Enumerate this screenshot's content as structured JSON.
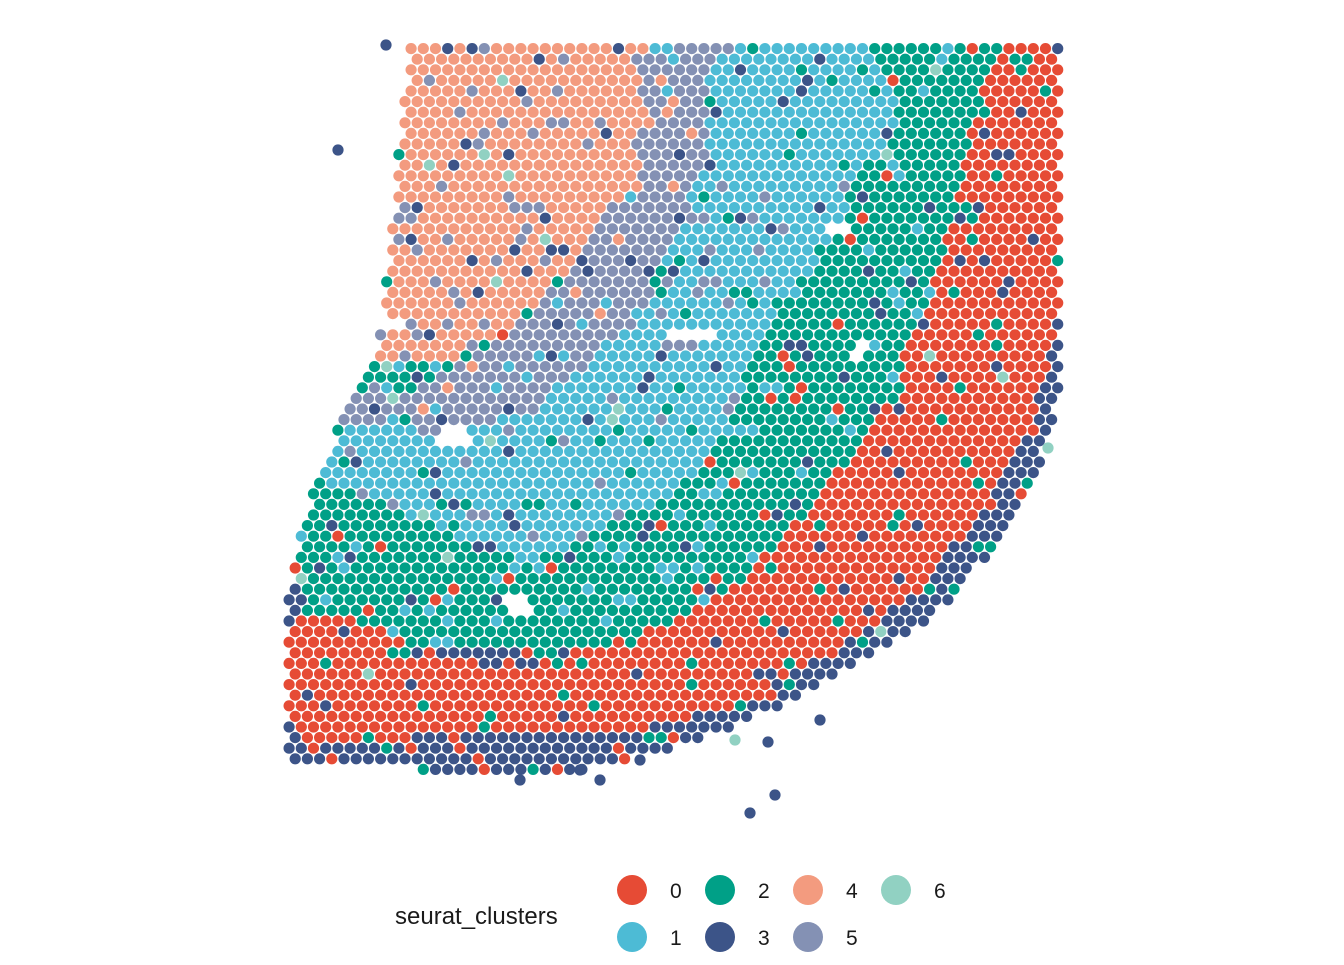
{
  "chart_data": {
    "type": "scatter",
    "subtype": "spatial-transcriptomics-spot-plot",
    "title": "",
    "xlabel": "",
    "ylabel": "",
    "axes_visible": false,
    "grid": false,
    "legend": {
      "title": "seurat_clusters",
      "placement": "bottom",
      "entries": [
        {
          "label": "0",
          "color": "#E64B35"
        },
        {
          "label": "1",
          "color": "#4DBBD5"
        },
        {
          "label": "2",
          "color": "#00A087"
        },
        {
          "label": "3",
          "color": "#3C5488"
        },
        {
          "label": "4",
          "color": "#F39B7F"
        },
        {
          "label": "5",
          "color": "#8491B4"
        },
        {
          "label": "6",
          "color": "#91D1C2"
        }
      ]
    },
    "series": [
      {
        "name": "0",
        "color": "#E64B35",
        "regions": [
          [
            [
              1005,
              43
            ],
            [
              1058,
              38
            ],
            [
              1062,
              300
            ],
            [
              1045,
              380
            ],
            [
              1010,
              470
            ],
            [
              960,
              540
            ],
            [
              905,
              600
            ],
            [
              840,
              650
            ],
            [
              780,
              680
            ],
            [
              720,
              710
            ],
            [
              660,
              725
            ],
            [
              600,
              735
            ],
            [
              530,
              730
            ],
            [
              450,
              735
            ],
            [
              380,
              740
            ],
            [
              300,
              745
            ],
            [
              285,
              715
            ],
            [
              285,
              640
            ],
            [
              300,
              610
            ],
            [
              360,
              620
            ],
            [
              420,
              650
            ],
            [
              500,
              670
            ],
            [
              580,
              650
            ],
            [
              660,
              625
            ],
            [
              730,
              590
            ],
            [
              790,
              530
            ],
            [
              830,
              480
            ],
            [
              870,
              430
            ],
            [
              910,
              380
            ],
            [
              940,
              320
            ],
            [
              950,
              250
            ],
            [
              960,
              200
            ],
            [
              975,
              150
            ],
            [
              990,
              100
            ]
          ]
        ]
      },
      {
        "name": "1",
        "color": "#4DBBD5",
        "regions": [
          [
            [
              720,
              45
            ],
            [
              860,
              45
            ],
            [
              880,
              70
            ],
            [
              900,
              110
            ],
            [
              880,
              150
            ],
            [
              850,
              180
            ],
            [
              840,
              230
            ],
            [
              820,
              260
            ],
            [
              790,
              300
            ],
            [
              760,
              340
            ],
            [
              740,
              390
            ],
            [
              730,
              430
            ],
            [
              700,
              470
            ],
            [
              660,
              500
            ],
            [
              620,
              520
            ],
            [
              580,
              540
            ],
            [
              540,
              560
            ],
            [
              500,
              555
            ],
            [
              460,
              540
            ],
            [
              420,
              520
            ],
            [
              380,
              500
            ],
            [
              340,
              490
            ],
            [
              315,
              475
            ],
            [
              320,
              450
            ],
            [
              345,
              425
            ],
            [
              380,
              410
            ],
            [
              420,
              430
            ],
            [
              460,
              440
            ],
            [
              500,
              420
            ],
            [
              540,
              400
            ],
            [
              580,
              370
            ],
            [
              620,
              330
            ],
            [
              650,
              300
            ],
            [
              660,
              260
            ],
            [
              680,
              220
            ],
            [
              700,
              180
            ],
            [
              710,
              130
            ],
            [
              705,
              90
            ]
          ]
        ]
      },
      {
        "name": "2",
        "color": "#00A087",
        "regions": [
          [
            [
              860,
              45
            ],
            [
              1000,
              45
            ],
            [
              985,
              80
            ],
            [
              970,
              130
            ],
            [
              960,
              190
            ],
            [
              945,
              240
            ],
            [
              930,
              300
            ],
            [
              905,
              350
            ],
            [
              880,
              400
            ],
            [
              850,
              440
            ],
            [
              820,
              480
            ],
            [
              790,
              520
            ],
            [
              760,
              560
            ],
            [
              720,
              590
            ],
            [
              680,
              610
            ],
            [
              640,
              630
            ],
            [
              600,
              645
            ],
            [
              560,
              650
            ],
            [
              520,
              640
            ],
            [
              480,
              620
            ],
            [
              440,
              600
            ],
            [
              400,
              590
            ],
            [
              360,
              580
            ],
            [
              320,
              575
            ],
            [
              300,
              560
            ],
            [
              300,
              520
            ],
            [
              330,
              500
            ],
            [
              380,
              520
            ],
            [
              430,
              540
            ],
            [
              480,
              560
            ],
            [
              530,
              570
            ],
            [
              580,
              550
            ],
            [
              630,
              520
            ],
            [
              670,
              490
            ],
            [
              710,
              460
            ],
            [
              740,
              420
            ],
            [
              760,
              380
            ],
            [
              780,
              340
            ],
            [
              800,
              300
            ],
            [
              830,
              260
            ],
            [
              850,
              210
            ],
            [
              870,
              170
            ],
            [
              895,
              130
            ],
            [
              900,
              100
            ]
          ]
        ]
      },
      {
        "name": "3",
        "color": "#3C5488",
        "regions": [
          [
            [
              1062,
              300
            ],
            [
              1060,
              380
            ],
            [
              1050,
              440
            ],
            [
              1030,
              490
            ],
            [
              1000,
              540
            ],
            [
              960,
              590
            ],
            [
              920,
              630
            ],
            [
              870,
              660
            ],
            [
              820,
              690
            ],
            [
              760,
              715
            ],
            [
              700,
              735
            ],
            [
              640,
              750
            ],
            [
              580,
              765
            ],
            [
              520,
              770
            ],
            [
              440,
              765
            ],
            [
              360,
              765
            ],
            [
              285,
              760
            ],
            [
              285,
              740
            ],
            [
              360,
              740
            ],
            [
              450,
              735
            ],
            [
              530,
              730
            ],
            [
              600,
              735
            ],
            [
              660,
              725
            ],
            [
              720,
              710
            ],
            [
              780,
              680
            ],
            [
              840,
              650
            ],
            [
              905,
              600
            ],
            [
              960,
              540
            ],
            [
              1010,
              470
            ],
            [
              1045,
              380
            ]
          ],
          [
            [
              285,
              560
            ],
            [
              310,
              575
            ],
            [
              300,
              610
            ],
            [
              285,
              640
            ]
          ]
        ]
      },
      {
        "name": "4",
        "color": "#F39B7F",
        "regions": [
          [
            [
              408,
              45
            ],
            [
              630,
              45
            ],
            [
              640,
              80
            ],
            [
              650,
              120
            ],
            [
              640,
              170
            ],
            [
              610,
              210
            ],
            [
              580,
              250
            ],
            [
              550,
              290
            ],
            [
              520,
              320
            ],
            [
              490,
              340
            ],
            [
              460,
              355
            ],
            [
              420,
              365
            ],
            [
              380,
              360
            ],
            [
              378,
              330
            ],
            [
              385,
              300
            ],
            [
              390,
              250
            ],
            [
              395,
              200
            ],
            [
              400,
              150
            ],
            [
              405,
              100
            ]
          ]
        ]
      },
      {
        "name": "5",
        "color": "#8491B4",
        "regions": [
          [
            [
              630,
              45
            ],
            [
              720,
              45
            ],
            [
              705,
              90
            ],
            [
              710,
              130
            ],
            [
              700,
              180
            ],
            [
              680,
              220
            ],
            [
              660,
              260
            ],
            [
              650,
              300
            ],
            [
              620,
              330
            ],
            [
              580,
              370
            ],
            [
              540,
              400
            ],
            [
              500,
              420
            ],
            [
              460,
              440
            ],
            [
              420,
              430
            ],
            [
              400,
              400
            ],
            [
              430,
              380
            ],
            [
              470,
              360
            ],
            [
              510,
              335
            ],
            [
              545,
              300
            ],
            [
              575,
              260
            ],
            [
              605,
              215
            ],
            [
              640,
              170
            ],
            [
              650,
              120
            ],
            [
              640,
              80
            ]
          ],
          [
            [
              340,
              400
            ],
            [
              380,
              380
            ],
            [
              400,
              410
            ],
            [
              360,
              430
            ],
            [
              335,
              425
            ]
          ]
        ]
      },
      {
        "name": "6",
        "color": "#91D1C2",
        "regions": []
      }
    ],
    "isolated_spots": [
      {
        "cluster": "3",
        "position": "upper-left outlier"
      },
      {
        "cluster": "3",
        "position": "bottom-center outliers"
      },
      {
        "cluster": "6",
        "position": "scattered singletons"
      }
    ],
    "holes": [
      {
        "description": "small white gaps inside tissue"
      }
    ]
  }
}
